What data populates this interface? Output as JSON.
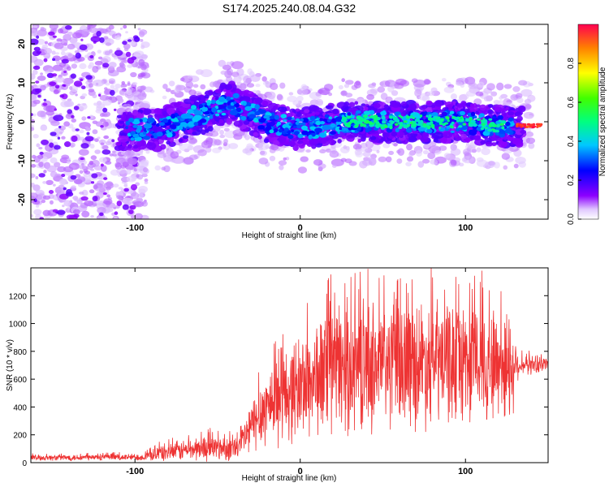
{
  "title": "S174.2025.240.08.04.G32",
  "chart_data": [
    {
      "type": "heatmap",
      "xlabel": "Height of straight line (km)",
      "ylabel": "Frequency (Hz)",
      "xlim": [
        -163,
        150
      ],
      "ylim": [
        -25,
        25
      ],
      "xticks": [
        -100,
        0,
        100
      ],
      "yticks": [
        -20,
        -10,
        0,
        10,
        20
      ],
      "colorbar": {
        "label": "Normalized spectral amplitude",
        "range": [
          0,
          1
        ],
        "ticks": [
          "0.0",
          "0.2",
          "0.4",
          "0.6",
          "0.8"
        ]
      },
      "ridge": [
        {
          "x": -105,
          "y": -2
        },
        {
          "x": -85,
          "y": -2
        },
        {
          "x": -60,
          "y": 2
        },
        {
          "x": -42,
          "y": 5
        },
        {
          "x": -20,
          "y": 0
        },
        {
          "x": 0,
          "y": -2
        },
        {
          "x": 30,
          "y": 0
        },
        {
          "x": 60,
          "y": 0
        },
        {
          "x": 90,
          "y": 0
        },
        {
          "x": 120,
          "y": -1
        },
        {
          "x": 145,
          "y": -1
        }
      ]
    },
    {
      "type": "line",
      "xlabel": "Height of straight line (km)",
      "ylabel": "SNR (10 * v/v)",
      "xlim": [
        -163,
        150
      ],
      "ylim": [
        0,
        1400
      ],
      "xticks": [
        -100,
        0,
        100
      ],
      "yticks": [
        0,
        200,
        400,
        600,
        800,
        1000,
        1200
      ],
      "series": [
        {
          "name": "SNR",
          "color": "#ee3333"
        }
      ],
      "envelope": [
        {
          "x": -163,
          "base": 35,
          "amp": 25
        },
        {
          "x": -95,
          "base": 40,
          "amp": 30
        },
        {
          "x": -85,
          "base": 70,
          "amp": 70
        },
        {
          "x": -55,
          "base": 110,
          "amp": 110
        },
        {
          "x": -38,
          "base": 100,
          "amp": 100
        },
        {
          "x": -30,
          "base": 250,
          "amp": 220
        },
        {
          "x": -20,
          "base": 420,
          "amp": 330
        },
        {
          "x": 0,
          "base": 550,
          "amp": 450
        },
        {
          "x": 20,
          "base": 680,
          "amp": 550
        },
        {
          "x": 60,
          "base": 720,
          "amp": 550
        },
        {
          "x": 100,
          "base": 740,
          "amp": 520
        },
        {
          "x": 128,
          "base": 700,
          "amp": 480
        },
        {
          "x": 132,
          "base": 700,
          "amp": 90
        },
        {
          "x": 150,
          "base": 710,
          "amp": 70
        }
      ]
    }
  ]
}
